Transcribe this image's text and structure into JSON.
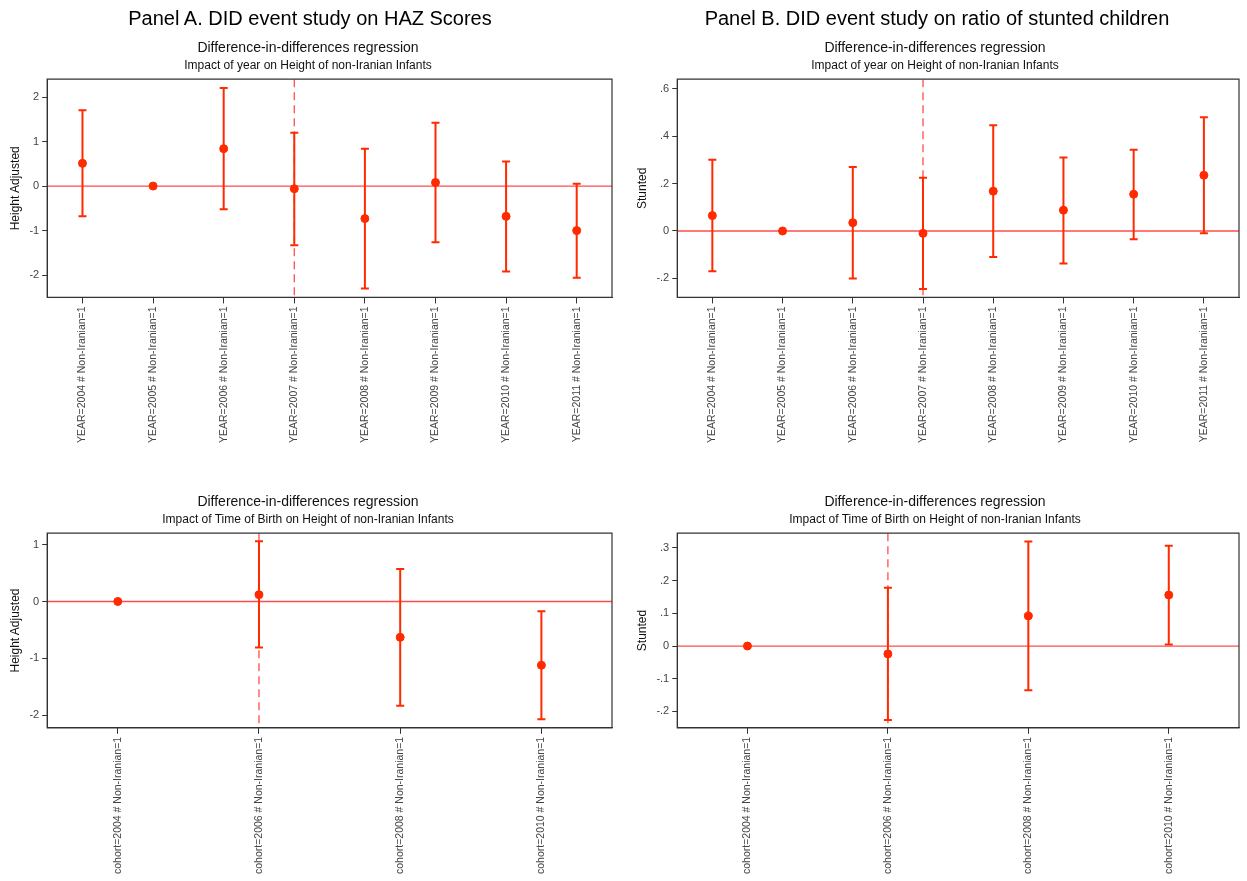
{
  "chart_data": [
    {
      "type": "scatter",
      "title": "Difference-in-differences regression",
      "subtitle": "Impact of year on Height of non-Iranian Infants",
      "ylabel": "Height Adjusted",
      "annotations": [
        "Panel A. DID event study on HAZ Scores"
      ],
      "categories": [
        "YEAR=2004 # Non-Iranian=1",
        "YEAR=2005 # Non-Iranian=1",
        "YEAR=2006 # Non-Iranian=1",
        "YEAR=2007 # Non-Iranian=1",
        "YEAR=2008 # Non-Iranian=1",
        "YEAR=2009 # Non-Iranian=1",
        "YEAR=2010 # Non-Iranian=1",
        "YEAR=2011 # Non-Iranian=1"
      ],
      "series": [
        {
          "color": "#ff2a00",
          "values": [
            0.51,
            0,
            0.84,
            -0.06,
            -0.73,
            0.08,
            -0.68,
            -1.0
          ],
          "errors": [
            [
              -0.68,
              1.7
            ],
            null,
            [
              -0.52,
              2.2
            ],
            [
              -1.33,
              1.2
            ],
            [
              -2.3,
              0.84
            ],
            [
              -1.26,
              1.42
            ],
            [
              -1.92,
              0.55
            ],
            [
              -2.06,
              0.05
            ]
          ]
        }
      ],
      "ylim": [
        -2.5,
        2.4
      ],
      "yticks": [
        -2,
        -1,
        0,
        1,
        2
      ],
      "ref_lines": [
        {
          "axis": "y",
          "value": 0,
          "color": "#ff4d4d",
          "line_style": "solid"
        },
        {
          "axis": "x",
          "value": "YEAR=2007 # Non-Iranian=1",
          "color": "#ff4d4d",
          "line_style": "dashed"
        }
      ],
      "grid": false,
      "legend": false,
      "marker": "circle"
    },
    {
      "type": "scatter",
      "title": "Difference-in-differences regression",
      "subtitle": "Impact of year on Height of non-Iranian Infants",
      "ylabel": "Stunted",
      "annotations": [
        "Panel B. DID event study on ratio of stunted children"
      ],
      "categories": [
        "YEAR=2004 # Non-Iranian=1",
        "YEAR=2005 # Non-Iranian=1",
        "YEAR=2006 # Non-Iranian=1",
        "YEAR=2007 # Non-Iranian=1",
        "YEAR=2008 # Non-Iranian=1",
        "YEAR=2009 # Non-Iranian=1",
        "YEAR=2010 # Non-Iranian=1",
        "YEAR=2011 # Non-Iranian=1"
      ],
      "series": [
        {
          "color": "#ff2a00",
          "values": [
            0.065,
            0,
            0.035,
            -0.01,
            0.168,
            0.088,
            0.155,
            0.235
          ],
          "errors": [
            [
              -0.17,
              0.3
            ],
            null,
            [
              -0.2,
              0.27
            ],
            [
              -0.245,
              0.225
            ],
            [
              -0.11,
              0.446
            ],
            [
              -0.137,
              0.31
            ],
            [
              -0.035,
              0.343
            ],
            [
              -0.01,
              0.48
            ]
          ]
        }
      ],
      "ylim": [
        -0.28,
        0.64
      ],
      "yticks": [
        {
          "value": -0.2,
          "label": "-.2"
        },
        0,
        {
          "value": 0.2,
          "label": ".2"
        },
        {
          "value": 0.4,
          "label": ".4"
        },
        {
          "value": 0.6,
          "label": ".6"
        }
      ],
      "ref_lines": [
        {
          "axis": "y",
          "value": 0,
          "color": "#ff4d4d",
          "line_style": "solid"
        },
        {
          "axis": "x",
          "value": "YEAR=2007 # Non-Iranian=1",
          "color": "#ff4d4d",
          "line_style": "dashed"
        }
      ],
      "grid": false,
      "legend": false,
      "marker": "circle"
    },
    {
      "type": "scatter",
      "title": "Difference-in-differences regression",
      "subtitle": "Impact of Time of Birth on Height of non-Iranian Infants",
      "ylabel": "Height Adjusted",
      "categories": [
        "cohort=2004 # Non-Iranian=1",
        "cohort=2006 # Non-Iranian=1",
        "cohort=2008 # Non-Iranian=1",
        "cohort=2010 # Non-Iranian=1"
      ],
      "series": [
        {
          "color": "#ff2a00",
          "values": [
            0,
            0.12,
            -0.63,
            -1.12
          ],
          "errors": [
            null,
            [
              -0.81,
              1.06
            ],
            [
              -1.83,
              0.57
            ],
            [
              -2.07,
              -0.17
            ]
          ]
        }
      ],
      "ylim": [
        -2.22,
        1.2
      ],
      "yticks": [
        -2,
        -1,
        0,
        1
      ],
      "ref_lines": [
        {
          "axis": "y",
          "value": 0,
          "color": "#ff4d4d",
          "line_style": "solid"
        },
        {
          "axis": "x",
          "value": "cohort=2006 # Non-Iranian=1",
          "color": "#ff4d4d",
          "line_style": "dashed"
        }
      ],
      "grid": false,
      "legend": false,
      "marker": "circle"
    },
    {
      "type": "scatter",
      "title": "Difference-in-differences regression",
      "subtitle": "Impact of Time of Birth on Height of non-Iranian Infants",
      "ylabel": "Stunted",
      "categories": [
        "cohort=2004 # Non-Iranian=1",
        "cohort=2006 # Non-Iranian=1",
        "cohort=2008 # Non-Iranian=1",
        "cohort=2010 # Non-Iranian=1"
      ],
      "series": [
        {
          "color": "#ff2a00",
          "values": [
            0,
            -0.024,
            0.092,
            0.156
          ],
          "errors": [
            null,
            [
              -0.226,
              0.178
            ],
            [
              -0.135,
              0.32
            ],
            [
              0.005,
              0.307
            ]
          ]
        }
      ],
      "ylim": [
        -0.25,
        0.345
      ],
      "yticks": [
        {
          "value": -0.2,
          "label": "-.2"
        },
        {
          "value": -0.1,
          "label": "-.1"
        },
        0,
        {
          "value": 0.1,
          "label": ".1"
        },
        {
          "value": 0.2,
          "label": ".2"
        },
        {
          "value": 0.3,
          "label": ".3"
        }
      ],
      "ref_lines": [
        {
          "axis": "y",
          "value": 0,
          "color": "#ff4d4d",
          "line_style": "solid"
        },
        {
          "axis": "x",
          "value": "cohort=2006 # Non-Iranian=1",
          "color": "#ff4d4d",
          "line_style": "dashed"
        }
      ],
      "grid": false,
      "legend": false,
      "marker": "circle"
    }
  ]
}
